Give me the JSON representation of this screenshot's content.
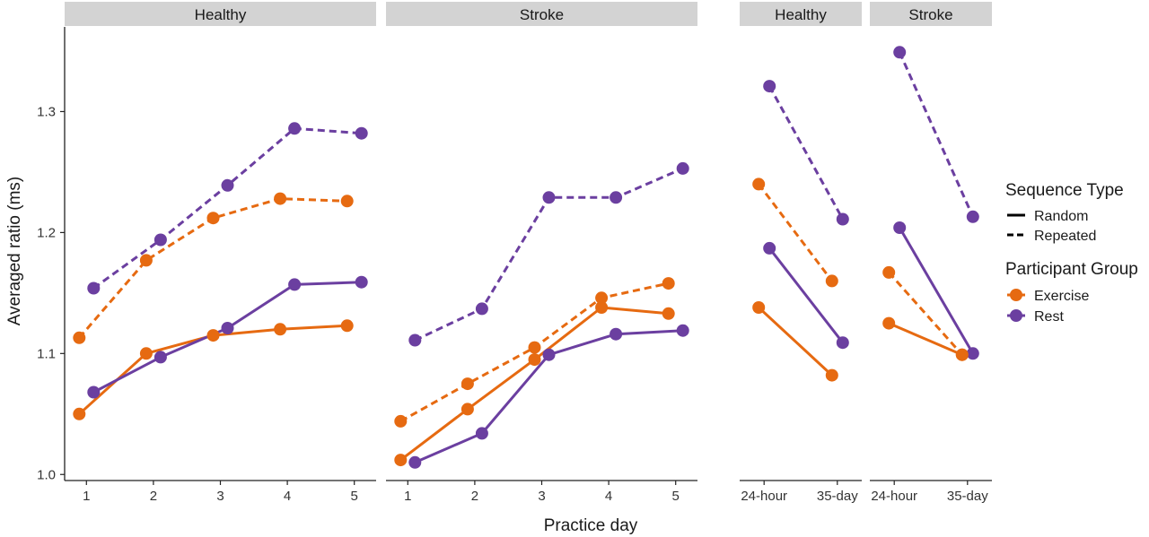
{
  "colors": {
    "exercise": "#E66A11",
    "rest": "#6B3FA0",
    "strip_bg": "#D3D3D3",
    "axis": "#222222"
  },
  "chart_data": {
    "type": "line",
    "ylabel": "Averaged ratio (ms)",
    "xlabel": "Practice day",
    "ylim": [
      0.995,
      1.37
    ],
    "yticks": [
      1.0,
      1.1,
      1.2,
      1.3
    ],
    "ytick_labels": [
      "1.0",
      "1.1",
      "1.2",
      "1.3"
    ],
    "grid": false,
    "legend": {
      "placement": "right",
      "linetype_title": "Sequence Type",
      "linetype_items": [
        {
          "label": "Random",
          "style": "solid"
        },
        {
          "label": "Repeated",
          "style": "dashed"
        }
      ],
      "color_title": "Participant Group",
      "color_items": [
        {
          "label": "Exercise",
          "color": "#E66A11"
        },
        {
          "label": "Rest",
          "color": "#6B3FA0"
        }
      ]
    },
    "panels": [
      {
        "title": "Healthy",
        "categories": [
          "1",
          "2",
          "3",
          "4",
          "5"
        ],
        "series": [
          {
            "group": "Exercise",
            "sequence": "Random",
            "values": [
              1.05,
              1.1,
              1.115,
              1.12,
              1.123
            ]
          },
          {
            "group": "Rest",
            "sequence": "Random",
            "values": [
              1.068,
              1.097,
              1.121,
              1.157,
              1.159
            ]
          },
          {
            "group": "Exercise",
            "sequence": "Repeated",
            "values": [
              1.113,
              1.177,
              1.212,
              1.228,
              1.226
            ]
          },
          {
            "group": "Rest",
            "sequence": "Repeated",
            "values": [
              1.154,
              1.194,
              1.239,
              1.286,
              1.282
            ]
          }
        ]
      },
      {
        "title": "Stroke",
        "categories": [
          "1",
          "2",
          "3",
          "4",
          "5"
        ],
        "series": [
          {
            "group": "Exercise",
            "sequence": "Random",
            "values": [
              1.012,
              1.054,
              1.095,
              1.138,
              1.133
            ]
          },
          {
            "group": "Rest",
            "sequence": "Random",
            "values": [
              1.01,
              1.034,
              1.099,
              1.116,
              1.119
            ]
          },
          {
            "group": "Exercise",
            "sequence": "Repeated",
            "values": [
              1.044,
              1.075,
              1.105,
              1.146,
              1.158
            ]
          },
          {
            "group": "Rest",
            "sequence": "Repeated",
            "values": [
              1.111,
              1.137,
              1.229,
              1.229,
              1.253
            ]
          }
        ]
      },
      {
        "title": "Healthy",
        "categories": [
          "24-hour",
          "35-day"
        ],
        "series": [
          {
            "group": "Exercise",
            "sequence": "Random",
            "values": [
              1.138,
              1.082
            ]
          },
          {
            "group": "Rest",
            "sequence": "Random",
            "values": [
              1.187,
              1.109
            ]
          },
          {
            "group": "Exercise",
            "sequence": "Repeated",
            "values": [
              1.24,
              1.16
            ]
          },
          {
            "group": "Rest",
            "sequence": "Repeated",
            "values": [
              1.321,
              1.211
            ]
          }
        ]
      },
      {
        "title": "Stroke",
        "categories": [
          "24-hour",
          "35-day"
        ],
        "series": [
          {
            "group": "Exercise",
            "sequence": "Random",
            "values": [
              1.125,
              1.099
            ]
          },
          {
            "group": "Rest",
            "sequence": "Random",
            "values": [
              1.204,
              1.1
            ]
          },
          {
            "group": "Exercise",
            "sequence": "Repeated",
            "values": [
              1.167,
              1.099
            ]
          },
          {
            "group": "Rest",
            "sequence": "Repeated",
            "values": [
              1.349,
              1.213
            ]
          }
        ]
      }
    ]
  }
}
